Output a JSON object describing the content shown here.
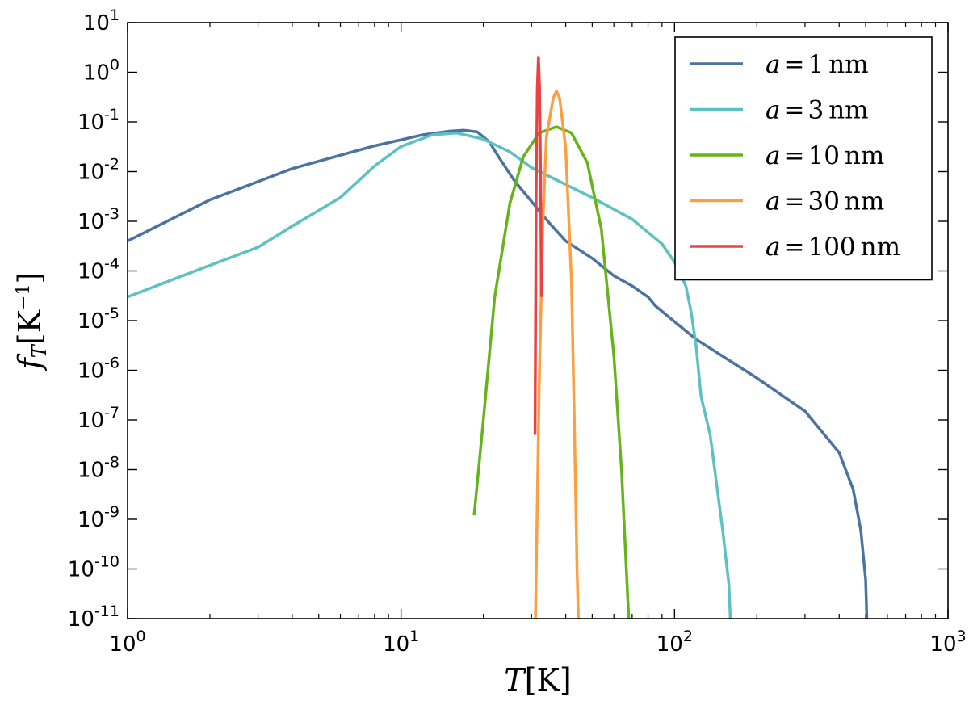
{
  "chart_data": {
    "type": "line",
    "title": "",
    "xlabel": {
      "main": "T",
      "bracket_open": "[",
      "unit": "K",
      "bracket_close": "]"
    },
    "ylabel": {
      "main": "f",
      "sub": "T",
      "bracket_open": "[",
      "unit": "K",
      "sup": "−1",
      "bracket_close": "]"
    },
    "xscale": "log",
    "yscale": "log",
    "xlim": [
      1,
      1000
    ],
    "ylim": [
      1e-11,
      10
    ],
    "grid": false,
    "legend_position": "top-right",
    "x_ticks": [
      {
        "value": 1,
        "base": "10",
        "exp": "0"
      },
      {
        "value": 10,
        "base": "10",
        "exp": "1"
      },
      {
        "value": 100,
        "base": "10",
        "exp": "2"
      },
      {
        "value": 1000,
        "base": "10",
        "exp": "3"
      }
    ],
    "y_ticks": [
      {
        "value": 10,
        "base": "10",
        "exp": "1"
      },
      {
        "value": 1,
        "base": "10",
        "exp": "0"
      },
      {
        "value": 0.1,
        "base": "10",
        "exp": "-1"
      },
      {
        "value": 0.01,
        "base": "10",
        "exp": "-2"
      },
      {
        "value": 0.001,
        "base": "10",
        "exp": "-3"
      },
      {
        "value": 0.0001,
        "base": "10",
        "exp": "-4"
      },
      {
        "value": 1e-05,
        "base": "10",
        "exp": "-5"
      },
      {
        "value": 1e-06,
        "base": "10",
        "exp": "-6"
      },
      {
        "value": 1e-07,
        "base": "10",
        "exp": "-7"
      },
      {
        "value": 1e-08,
        "base": "10",
        "exp": "-8"
      },
      {
        "value": 1e-09,
        "base": "10",
        "exp": "-9"
      },
      {
        "value": 1e-10,
        "base": "10",
        "exp": "-10"
      },
      {
        "value": 1e-11,
        "base": "10",
        "exp": "-11"
      }
    ],
    "series": [
      {
        "name": "a = 1 nm",
        "label_var": "a",
        "label_eq": "=",
        "label_value": "1",
        "label_unit": "nm",
        "color": "#4c72a0",
        "points": [
          [
            1,
            0.0004
          ],
          [
            2,
            0.0027
          ],
          [
            4,
            0.0115
          ],
          [
            8,
            0.033
          ],
          [
            12,
            0.055
          ],
          [
            15,
            0.065
          ],
          [
            17,
            0.068
          ],
          [
            19,
            0.063
          ],
          [
            21,
            0.04
          ],
          [
            23,
            0.018
          ],
          [
            26,
            0.0065
          ],
          [
            30,
            0.0025
          ],
          [
            35,
            0.0009
          ],
          [
            40,
            0.0004
          ],
          [
            50,
            0.00018
          ],
          [
            60,
            8e-05
          ],
          [
            70,
            5e-05
          ],
          [
            80,
            3e-05
          ],
          [
            85,
            2e-05
          ],
          [
            95,
            1.2e-05
          ],
          [
            120,
            4.2e-06
          ],
          [
            200,
            7e-07
          ],
          [
            300,
            1.5e-07
          ],
          [
            400,
            2.2e-08
          ],
          [
            450,
            4e-09
          ],
          [
            480,
            6e-10
          ],
          [
            500,
            6e-11
          ],
          [
            505,
            1e-11
          ]
        ]
      },
      {
        "name": "a = 3 nm",
        "label_var": "a",
        "label_eq": "=",
        "label_value": "3",
        "label_unit": "nm",
        "color": "#5cc1c1",
        "points": [
          [
            1,
            3e-05
          ],
          [
            2,
            0.00013
          ],
          [
            3,
            0.0003
          ],
          [
            4,
            0.0008
          ],
          [
            6,
            0.003
          ],
          [
            8,
            0.013
          ],
          [
            10,
            0.032
          ],
          [
            13,
            0.055
          ],
          [
            16,
            0.06
          ],
          [
            20,
            0.045
          ],
          [
            25,
            0.025
          ],
          [
            30,
            0.012
          ],
          [
            40,
            0.0055
          ],
          [
            50,
            0.003
          ],
          [
            70,
            0.0011
          ],
          [
            90,
            0.00035
          ],
          [
            100,
            0.00015
          ],
          [
            110,
            5e-05
          ],
          [
            115,
            1.5e-05
          ],
          [
            120,
            3e-06
          ],
          [
            125,
            3e-07
          ],
          [
            135,
            5e-08
          ],
          [
            150,
            6e-10
          ],
          [
            158,
            5e-11
          ],
          [
            160,
            1e-11
          ]
        ]
      },
      {
        "name": "a = 10 nm",
        "label_var": "a",
        "label_eq": "=",
        "label_value": "10",
        "label_unit": "nm",
        "color": "#66b31a",
        "points": [
          [
            18.5,
            1.2e-09
          ],
          [
            20,
            1e-07
          ],
          [
            22,
            3e-05
          ],
          [
            25,
            0.0023
          ],
          [
            28,
            0.02
          ],
          [
            32,
            0.06
          ],
          [
            37,
            0.08
          ],
          [
            42,
            0.06
          ],
          [
            48,
            0.015
          ],
          [
            54,
            0.0007
          ],
          [
            60,
            2e-06
          ],
          [
            64,
            1e-08
          ],
          [
            66,
            3e-10
          ],
          [
            68,
            1e-11
          ]
        ]
      },
      {
        "name": "a = 30 nm",
        "label_var": "a",
        "label_eq": "=",
        "label_value": "30",
        "label_unit": "nm",
        "color": "#fb9f40",
        "points": [
          [
            31,
            1e-11
          ],
          [
            32,
            5e-07
          ],
          [
            33,
            0.0009
          ],
          [
            34,
            0.05
          ],
          [
            36,
            0.3
          ],
          [
            37,
            0.42
          ],
          [
            38,
            0.3
          ],
          [
            40,
            0.03
          ],
          [
            42,
            6e-05
          ],
          [
            43,
            1e-07
          ],
          [
            44,
            1e-10
          ],
          [
            44.5,
            1e-11
          ]
        ]
      },
      {
        "name": "a = 100 nm",
        "label_var": "a",
        "label_eq": "=",
        "label_value": "100",
        "label_unit": "nm",
        "color": "#ec4141",
        "points": [
          [
            30.9,
            5e-08
          ],
          [
            31.2,
            0.005
          ],
          [
            31.5,
            0.5
          ],
          [
            31.8,
            2.0
          ],
          [
            32.1,
            0.5
          ],
          [
            32.4,
            0.005
          ],
          [
            32.6,
            3e-05
          ]
        ]
      }
    ]
  }
}
